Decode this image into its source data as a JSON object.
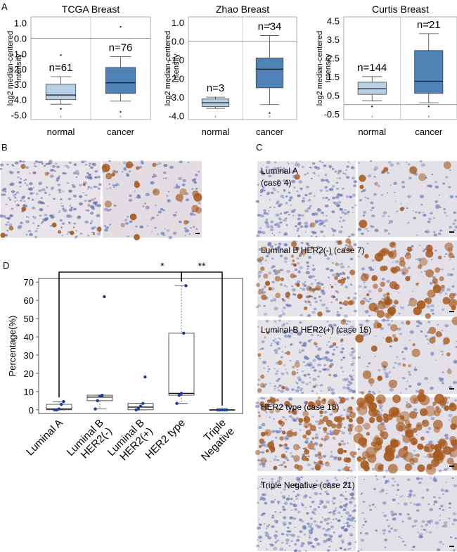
{
  "panel_letters": {
    "a": "A",
    "b": "B",
    "c": "C",
    "d": "D"
  },
  "colors": {
    "normal_box": "#b8cfe6",
    "cancer_box": "#4f83b8",
    "stain_brown": "#a75a1f",
    "dot_blue": "#1f3b9a"
  },
  "chart_data": [
    {
      "type": "box",
      "title": "TCGA Breast",
      "ylabel": "log2 median-centered Intensity",
      "ticks": [
        "1.0",
        "0.0",
        "-1.0",
        "-2.0",
        "-3.0",
        "-4.0",
        "-5.0"
      ],
      "ylim": [
        -5.3,
        1.4
      ],
      "zero_line": 0.0,
      "categories": [
        "normal",
        "cancer"
      ],
      "index_labels": [
        "1",
        "2"
      ],
      "counts": [
        "n=61",
        "n=76"
      ],
      "boxes": [
        {
          "whisker_low": -4.3,
          "q1": -4.0,
          "median": -3.7,
          "q3": -3.0,
          "whisker_high": -2.5,
          "outliers": [
            -1.1,
            -4.6
          ]
        },
        {
          "whisker_low": -4.1,
          "q1": -3.6,
          "median": -2.9,
          "q3": -1.9,
          "whisker_high": -1.2,
          "outliers": [
            0.75,
            -4.8
          ]
        }
      ]
    },
    {
      "type": "box",
      "title": "Zhao Breast",
      "ylabel": "log2 median-centered Intensity",
      "ticks": [
        "1.0",
        "0.0",
        "-1.0",
        "-2.0",
        "-3.0",
        "-4.0"
      ],
      "ylim": [
        -4.2,
        1.3
      ],
      "zero_line": 0.0,
      "categories": [
        "normal",
        "cancer"
      ],
      "index_labels": [
        "1",
        "2"
      ],
      "counts": [
        "n=3",
        "n=34"
      ],
      "boxes": [
        {
          "whisker_low": -3.6,
          "q1": -3.5,
          "median": -3.3,
          "q3": -3.1,
          "whisker_high": -3.0,
          "outliers": []
        },
        {
          "whisker_low": -3.4,
          "q1": -2.5,
          "median": -1.5,
          "q3": -0.9,
          "whisker_high": 0.3,
          "outliers": [
            0.9,
            -3.85
          ]
        }
      ]
    },
    {
      "type": "box",
      "title": "Curtis Breast",
      "ylabel": "log2 median-centered Intensity",
      "ticks": [
        "4.5",
        "3.5",
        "2.5",
        "1.5",
        "0.5",
        "-0.5"
      ],
      "ylim": [
        -0.8,
        4.7
      ],
      "zero_line": 0.0,
      "categories": [
        "normal",
        "cancer"
      ],
      "index_labels": [
        "1",
        "2"
      ],
      "counts": [
        "n=144",
        "n=21"
      ],
      "boxes": [
        {
          "whisker_low": 0.2,
          "q1": 0.55,
          "median": 0.85,
          "q3": 1.2,
          "whisker_high": 1.5,
          "outliers": [
            -0.1
          ]
        },
        {
          "whisker_low": 0.1,
          "q1": 0.6,
          "median": 1.25,
          "q3": 2.9,
          "whisker_high": 3.8,
          "outliers": [
            4.4,
            -0.1
          ]
        }
      ]
    },
    {
      "type": "box",
      "title": "",
      "ylabel": "Percentage(%)",
      "yticks": [
        0,
        10,
        20,
        30,
        40,
        50,
        60,
        70
      ],
      "ylim": [
        -2,
        72
      ],
      "categories": [
        "Luminal A",
        "Luminal B HER2(-)",
        "Luminal B HER2(+)",
        "HER2 type",
        "Triple Negative"
      ],
      "category_lines": [
        [
          "Luminal A"
        ],
        [
          "Luminal B",
          "HER2(-)"
        ],
        [
          "Luminal B",
          "HER2(+)"
        ],
        [
          "HER2 type"
        ],
        [
          "Triple",
          "Negative"
        ]
      ],
      "boxes": [
        {
          "whisker_low": 0,
          "q1": 0,
          "median": 0.5,
          "q3": 3,
          "whisker_high": 4.5,
          "points": [
            0,
            0,
            0.5,
            3,
            4.5
          ]
        },
        {
          "whisker_low": 0.5,
          "q1": 5,
          "median": 7,
          "q3": 8,
          "whisker_high": 8,
          "points": [
            0.5,
            5,
            7.5,
            8,
            62
          ]
        },
        {
          "whisker_low": 0,
          "q1": 0,
          "median": 1.5,
          "q3": 3.5,
          "whisker_high": 3.5,
          "points": [
            0,
            0.5,
            2,
            3.5,
            18
          ]
        },
        {
          "whisker_low": 3.5,
          "q1": 8,
          "median": 9,
          "q3": 42,
          "whisker_high": 68,
          "points": [
            3.5,
            8,
            9,
            42,
            68
          ]
        },
        {
          "whisker_low": 0,
          "q1": 0,
          "median": 0,
          "q3": 0,
          "whisker_high": 0,
          "points": [
            0,
            0,
            0,
            0,
            0
          ]
        }
      ],
      "significance": [
        {
          "from": "Luminal A",
          "to": "HER2 type",
          "label": "*"
        },
        {
          "from": "HER2 type",
          "to": "Triple Negative",
          "label": "**"
        }
      ]
    }
  ],
  "panel_c_labels": [
    {
      "lines": [
        "Luminal A",
        "(case 4)"
      ]
    },
    {
      "lines": [
        "Luminal B  HER2(-)  (case 7)"
      ]
    },
    {
      "lines": [
        "Luminal B  HER2(+)  (case 15)"
      ]
    },
    {
      "lines": [
        "HER2 type  (case 18)"
      ]
    },
    {
      "lines": [
        "Triple Negative  (case 21)"
      ]
    }
  ]
}
